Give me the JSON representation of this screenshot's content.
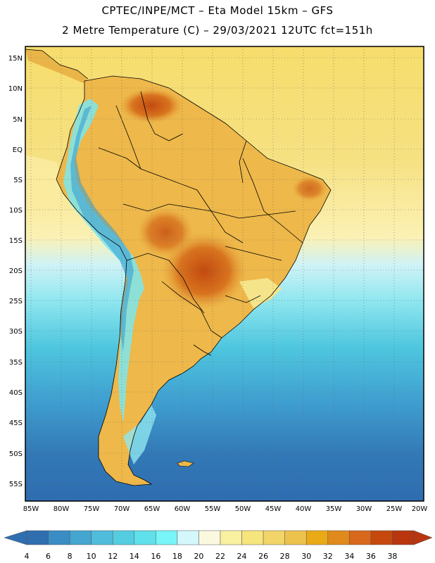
{
  "header": {
    "line1": "CPTEC/INPE/MCT –  Eta Model 15km – GFS",
    "line2": "2 Metre Temperature (C) – 29/03/2021 12UTC fct=151h"
  },
  "lat_labels": [
    "15N",
    "10N",
    "5N",
    "EQ",
    "5S",
    "10S",
    "15S",
    "20S",
    "25S",
    "30S",
    "35S",
    "40S",
    "45S",
    "50S",
    "55S"
  ],
  "lon_labels": [
    "85W",
    "80W",
    "75W",
    "70W",
    "65W",
    "60W",
    "55W",
    "50W",
    "45W",
    "40W",
    "35W",
    "30W",
    "25W",
    "20W"
  ],
  "colorbar": {
    "labels": [
      "4",
      "6",
      "8",
      "10",
      "12",
      "14",
      "16",
      "18",
      "20",
      "22",
      "24",
      "26",
      "28",
      "30",
      "32",
      "34",
      "36",
      "38"
    ],
    "colors": [
      "#2f6fb0",
      "#3a8dc4",
      "#44a6d1",
      "#4fbcdc",
      "#55cde0",
      "#5fe0ea",
      "#78f5f8",
      "#d4f7fb",
      "#fbf8e0",
      "#f9f0a0",
      "#f6e47c",
      "#f2d568",
      "#edc24c",
      "#eaa916",
      "#e08a1e",
      "#d8681c",
      "#c5480d",
      "#b8350e"
    ],
    "low_arrow_color": "#2f6fb0",
    "high_arrow_color": "#b8350e"
  },
  "palette": {
    "ocean_deep": "#2e73b4",
    "ocean_mid": "#3f9fd0",
    "ocean_cool": "#59d0e4",
    "ocean_light": "#cff6fa",
    "ocean_pale": "#fdf9dc",
    "ocean_warm": "#f7e48a",
    "land_warm": "#eeb84a",
    "land_hot": "#d8741f",
    "land_hottest": "#c54b10",
    "andes_cold": "#6fe3ee",
    "andes_mid": "#d7f4f7"
  }
}
